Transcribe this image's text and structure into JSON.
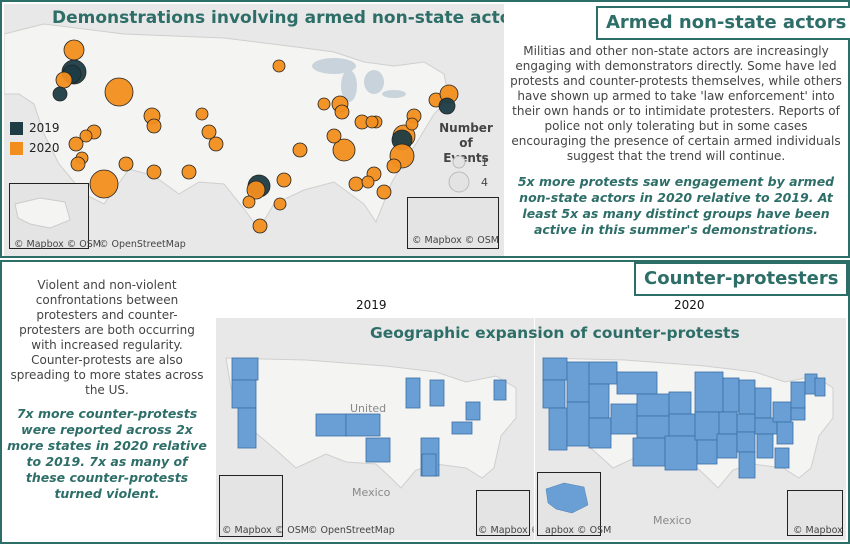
{
  "top": {
    "map_title": "Demonstrations involving armed non-state actors",
    "badge": "Armed non-state actors",
    "description": "Militias and other non-state actors are increasingly engaging with demonstrators directly. Some have led protests and counter-protests themselves, while others have shown up armed to take 'law enforcement' into their own hands or to intimidate protesters. Reports of police not only tolerating but in some cases encouraging the presence of certain armed individuals suggest that the trend will continue.",
    "highlight": "5x more protests saw engagement by armed non-state actors in 2020 relative to 2019. At least 5x as many distinct groups have been active in this summer's demonstrations.",
    "legend": {
      "items": [
        {
          "label": "2019",
          "color": "#1d3c44"
        },
        {
          "label": "2020",
          "color": "#f28e1e"
        }
      ],
      "size_title": "Number of Events",
      "size_min": "1",
      "size_max": "4"
    },
    "attribution_main": "© Mapbox © OSM",
    "attribution_osm": "© OpenStreetMap",
    "attribution_inset": "© Mapbox © OSM"
  },
  "bottom": {
    "badge": "Counter-protesters",
    "map_title": "Geographic expansion of counter-protests",
    "description": "Violent and non-violent confrontations between protesters and counter-protesters are both occurring with increased regularity. Counter-protests are also spreading to more states across the US.",
    "highlight": "7x more counter-protests were reported across 2x more states in 2020 relative to 2019. 7x as many of these counter-protests turned violent.",
    "year_left": "2019",
    "year_right": "2020",
    "label_united": "United",
    "label_mexico": "Mexico",
    "attribution_left": "© Mapbox © OSM",
    "attribution_osm": "© OpenStreetMap",
    "attribution_mid": "© Mapbox © OSM",
    "attribution_mid2": "apbox © OSM",
    "attribution_right": "© Mapbox",
    "state_color": "#6a9fd6"
  }
}
